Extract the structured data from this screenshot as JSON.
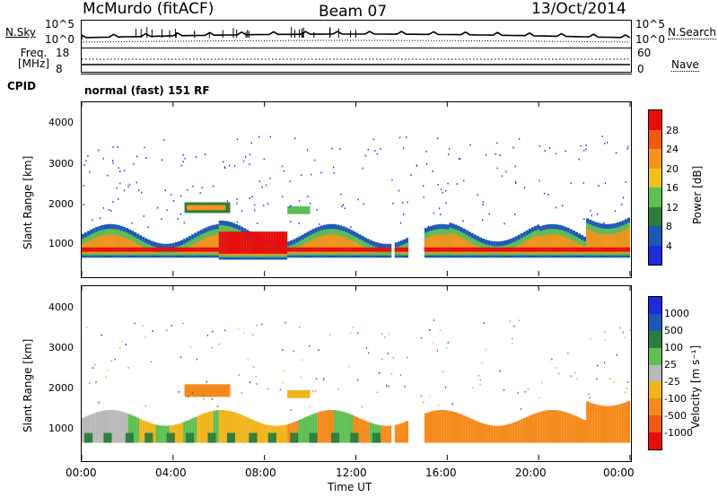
{
  "header": {
    "station": "McMurdo (fitACF)",
    "beam": "Beam 07",
    "date": "13/Oct/2014"
  },
  "top_strip": {
    "left_label_1": "N.Sky",
    "left_ticks_1": [
      "10^5",
      "10^0"
    ],
    "right_ticks_1": [
      "10^5",
      "10^0"
    ],
    "right_label_1": "N.Search",
    "left_label_2a": "Freq.",
    "left_label_2b": "[MHz]",
    "left_ticks_2": [
      "18",
      "8"
    ],
    "right_ticks_2": [
      "60",
      "0"
    ],
    "right_label_2": "Nave",
    "cpid_label": "CPID",
    "cpid_text": "normal (fast) 151 RF"
  },
  "colors": {
    "power": [
      "#1e2bd6",
      "#1b58b5",
      "#2e7d3e",
      "#5fbf54",
      "#f0c21c",
      "#f5941c",
      "#ee5a12",
      "#e80c0c"
    ],
    "velocity": [
      "#1e2bd6",
      "#1b58b5",
      "#2e7d3e",
      "#5fbf54",
      "#b8b8b8",
      "#f0b41c",
      "#f58a1c",
      "#ee5a12",
      "#e80c0c"
    ]
  },
  "chart_data": [
    {
      "type": "heatmap",
      "name": "power",
      "xlabel": "",
      "ylabel": "Slant Range [km]",
      "ylim": [
        180,
        4600
      ],
      "xlim": [
        0,
        24
      ],
      "yticks": [
        "4000",
        "3000",
        "2000",
        "1000"
      ],
      "colorbar_label": "Power [dB]",
      "colorbar_ticks": [
        "28",
        "24",
        "20",
        "16",
        "12",
        "8",
        "4"
      ]
    },
    {
      "type": "heatmap",
      "name": "velocity",
      "xlabel": "Time UT",
      "ylabel": "Slant Range [km]",
      "ylim": [
        180,
        4600
      ],
      "xlim": [
        0,
        24
      ],
      "xticks": [
        "00:00",
        "04:00",
        "08:00",
        "12:00",
        "16:00",
        "20:00",
        "00:00"
      ],
      "yticks": [
        "4000",
        "3000",
        "2000",
        "1000"
      ],
      "colorbar_label": "Velocity [m s⁻¹]",
      "colorbar_ticks": [
        "1000",
        "500",
        "100",
        "25",
        "-25",
        "-100",
        "-500",
        "-1000"
      ]
    }
  ]
}
